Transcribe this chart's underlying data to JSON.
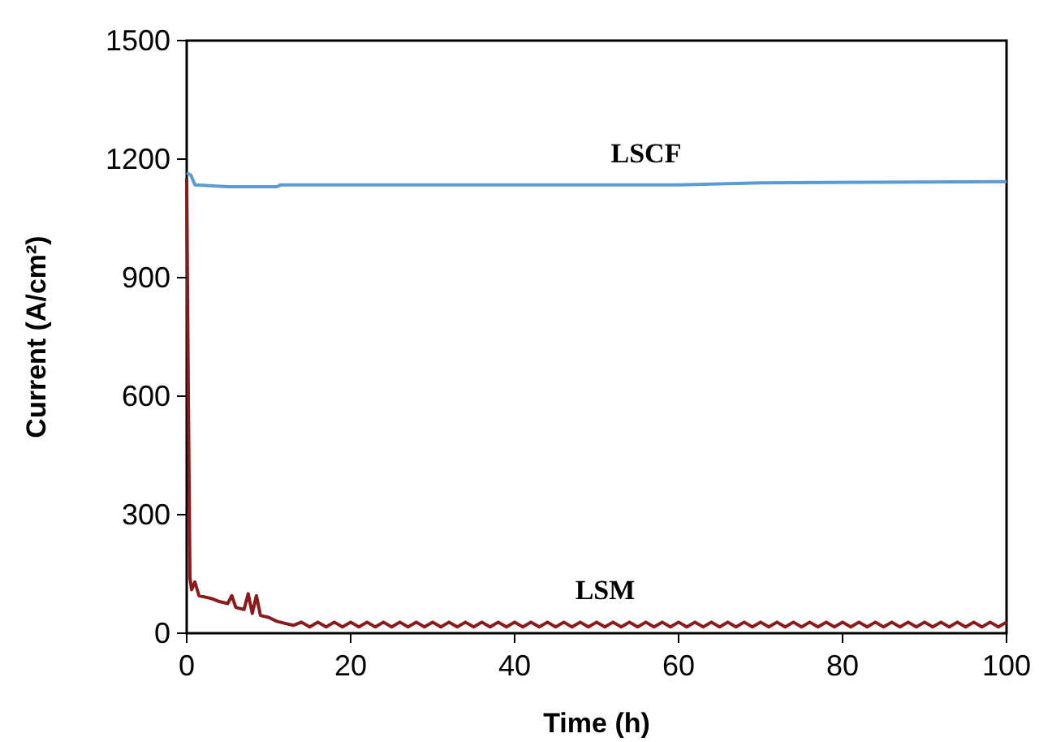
{
  "chart_data": {
    "type": "line",
    "xlabel": "Time (h)",
    "ylabel": "Current (A/cm²)",
    "xlim": [
      0,
      100
    ],
    "ylim": [
      0,
      1500
    ],
    "xticks": [
      0,
      20,
      40,
      60,
      80,
      100
    ],
    "yticks": [
      0,
      300,
      600,
      900,
      1200,
      1500
    ],
    "grid": false,
    "marker": "none",
    "line_style": "solid",
    "series": [
      {
        "name": "LSCF",
        "color": "#5b9bd5",
        "x": [
          0,
          0.5,
          1,
          5,
          11,
          11.5,
          30,
          50,
          60,
          70,
          100
        ],
        "values": [
          1165,
          1160,
          1135,
          1130,
          1130,
          1135,
          1135,
          1135,
          1135,
          1140,
          1143
        ]
      },
      {
        "name": "LSM",
        "color": "#8b1a1a",
        "x": [
          0,
          0.2,
          0.4,
          0.6,
          1,
          1.5,
          3,
          4,
          5,
          5.5,
          6,
          7,
          7.5,
          8,
          8.5,
          9,
          10,
          11,
          12,
          13,
          14,
          15,
          16,
          17,
          18,
          19,
          20,
          21,
          22,
          23,
          24,
          25,
          26,
          27,
          28,
          29,
          30,
          31,
          32,
          33,
          34,
          35,
          36,
          37,
          38,
          39,
          40,
          41,
          42,
          43,
          44,
          45,
          46,
          47,
          48,
          49,
          50,
          51,
          52,
          53,
          54,
          55,
          56,
          57,
          58,
          59,
          60,
          61,
          62,
          63,
          64,
          65,
          66,
          67,
          68,
          69,
          70,
          71,
          72,
          73,
          74,
          75,
          76,
          77,
          78,
          79,
          80,
          81,
          82,
          83,
          84,
          85,
          86,
          87,
          88,
          89,
          90,
          91,
          92,
          93,
          94,
          95,
          96,
          97,
          98,
          99,
          100
        ],
        "values": [
          1150,
          600,
          140,
          110,
          130,
          95,
          88,
          80,
          75,
          95,
          65,
          60,
          100,
          50,
          95,
          45,
          40,
          30,
          25,
          20,
          28,
          16,
          28,
          16,
          28,
          16,
          28,
          16,
          28,
          16,
          28,
          16,
          28,
          16,
          28,
          16,
          28,
          16,
          28,
          16,
          28,
          16,
          28,
          16,
          28,
          16,
          28,
          16,
          28,
          16,
          28,
          16,
          28,
          16,
          28,
          16,
          28,
          16,
          28,
          16,
          28,
          16,
          28,
          16,
          28,
          16,
          28,
          16,
          28,
          16,
          28,
          16,
          28,
          16,
          28,
          16,
          28,
          16,
          28,
          16,
          28,
          16,
          28,
          16,
          28,
          16,
          28,
          16,
          28,
          16,
          28,
          16,
          28,
          16,
          28,
          16,
          28,
          16,
          28,
          16,
          28,
          16,
          28,
          16,
          28,
          16,
          28
        ]
      }
    ]
  }
}
